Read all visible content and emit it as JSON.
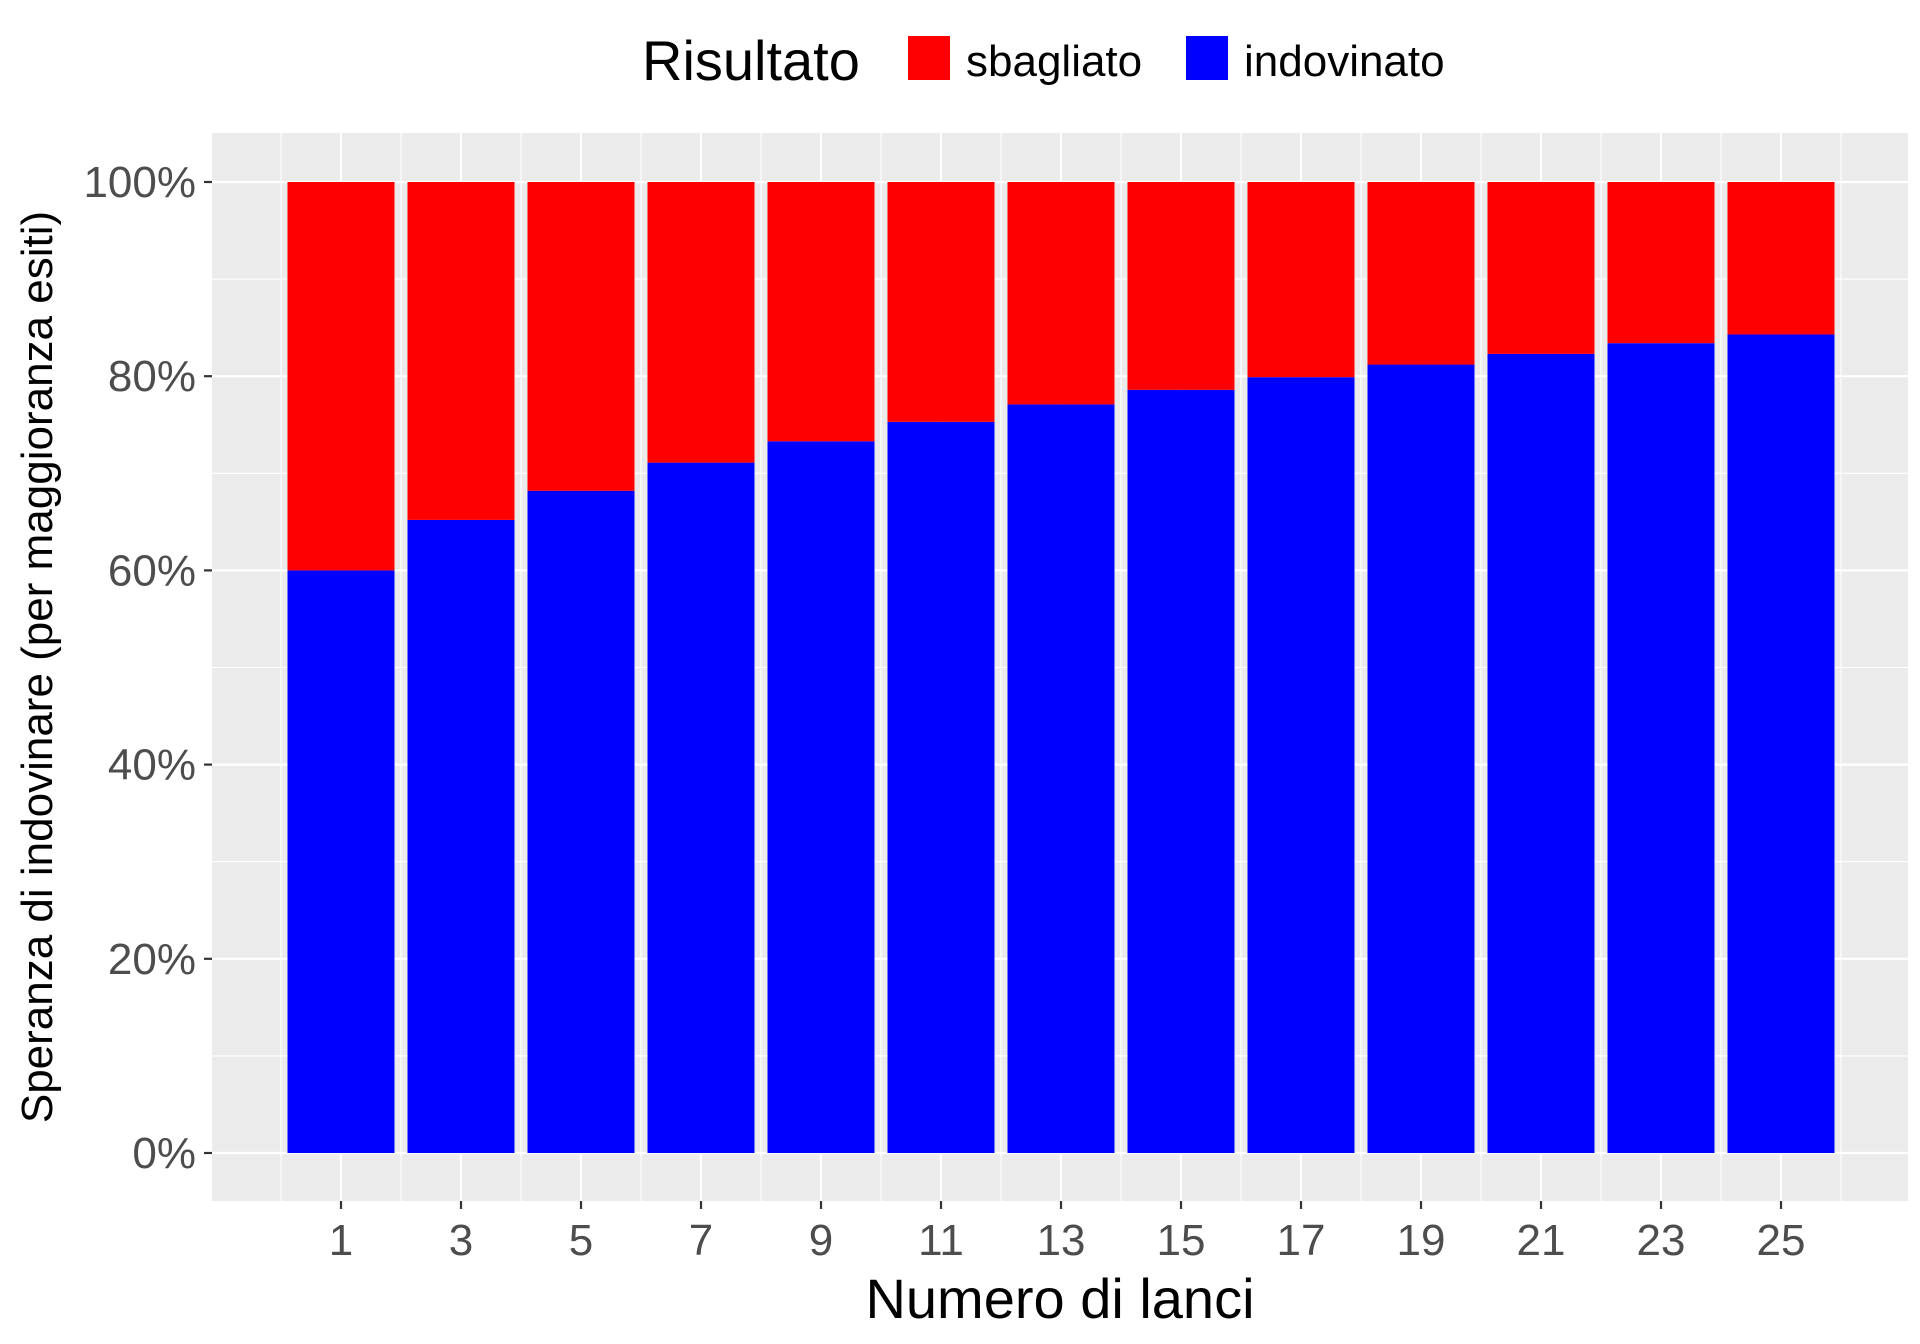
{
  "chart_data": {
    "type": "bar",
    "stacked": true,
    "percent": true,
    "xlabel": "Numero di lanci",
    "ylabel": "Speranza di indovinare (per maggioranza esiti)",
    "categories": [
      "1",
      "3",
      "5",
      "7",
      "9",
      "11",
      "13",
      "15",
      "17",
      "19",
      "21",
      "23",
      "25"
    ],
    "y_ticks": [
      "0%",
      "20%",
      "40%",
      "60%",
      "80%",
      "100%"
    ],
    "ylim": [
      0,
      1
    ],
    "legend": {
      "title": "Risultato",
      "position": "top"
    },
    "series": [
      {
        "name": "sbagliato",
        "color": "#ff0000",
        "values": [
          0.4,
          0.348,
          0.318,
          0.289,
          0.267,
          0.247,
          0.229,
          0.214,
          0.201,
          0.188,
          0.177,
          0.166,
          0.157
        ]
      },
      {
        "name": "indovinato",
        "color": "#0000ff",
        "values": [
          0.6,
          0.652,
          0.682,
          0.711,
          0.733,
          0.753,
          0.771,
          0.786,
          0.799,
          0.812,
          0.823,
          0.834,
          0.843
        ]
      }
    ],
    "panel_background": "#ebebeb",
    "grid": true
  }
}
